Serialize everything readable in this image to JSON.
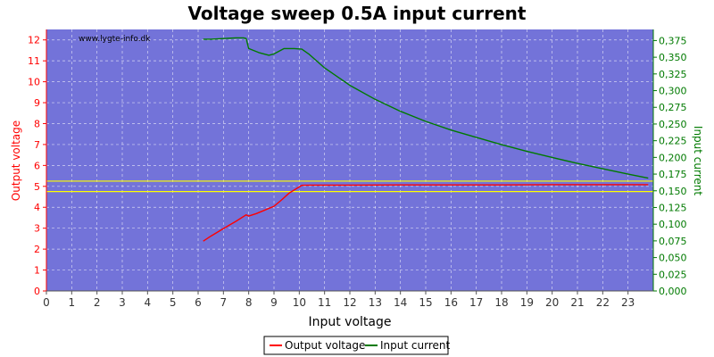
{
  "chart_data": {
    "type": "line",
    "title": "Voltage sweep 0.5A input current",
    "watermark": "www.lygte-info.dk",
    "xlabel": "Input voltage",
    "ylabel_left": "Output voltage",
    "ylabel_right": "Input current",
    "xlim": [
      0,
      24
    ],
    "ylim_left": [
      0,
      12.5
    ],
    "ylim_right": [
      0,
      0.3916
    ],
    "x_ticks": [
      "0",
      "1",
      "2",
      "3",
      "4",
      "5",
      "6",
      "7",
      "8",
      "9",
      "10",
      "11",
      "12",
      "13",
      "14",
      "15",
      "16",
      "17",
      "18",
      "19",
      "20",
      "21",
      "22",
      "23"
    ],
    "y_ticks_left": [
      "0",
      "1",
      "2",
      "3",
      "4",
      "5",
      "6",
      "7",
      "8",
      "9",
      "10",
      "11",
      "12"
    ],
    "y_ticks_right": [
      "0,000",
      "0,025",
      "0,050",
      "0,075",
      "0,100",
      "0,125",
      "0,150",
      "0,175",
      "0,200",
      "0,225",
      "0,250",
      "0,275",
      "0,300",
      "0,325",
      "0,350",
      "0,375"
    ],
    "grid": true,
    "background_color": "#7373d9",
    "reference_lines_left": [
      5.25,
      4.75
    ],
    "reference_line_color": "#ffff00",
    "series": [
      {
        "name": "Output voltage",
        "axis": "left",
        "color": "#ff0000",
        "x": [
          6.2,
          6.5,
          7.0,
          7.5,
          7.9,
          8.0,
          8.3,
          8.6,
          9.0,
          9.3,
          9.6,
          9.9,
          10.1,
          10.5,
          12,
          14,
          16,
          18,
          20,
          22,
          23.8
        ],
        "y": [
          2.38,
          2.62,
          2.98,
          3.33,
          3.64,
          3.58,
          3.7,
          3.85,
          4.05,
          4.35,
          4.68,
          4.9,
          5.05,
          5.06,
          5.06,
          5.07,
          5.07,
          5.07,
          5.08,
          5.08,
          5.08
        ]
      },
      {
        "name": "Input current",
        "axis": "right",
        "color": "#007a00",
        "x": [
          6.2,
          6.5,
          7.0,
          7.5,
          7.8,
          7.9,
          8.0,
          8.4,
          8.8,
          9.0,
          9.4,
          9.8,
          10.1,
          10.4,
          11,
          12,
          13,
          14,
          15,
          16,
          17,
          18,
          19,
          20,
          21,
          22,
          23,
          23.8
        ],
        "y": [
          0.377,
          0.377,
          0.378,
          0.379,
          0.379,
          0.378,
          0.363,
          0.357,
          0.353,
          0.355,
          0.363,
          0.363,
          0.362,
          0.354,
          0.334,
          0.308,
          0.287,
          0.269,
          0.254,
          0.241,
          0.23,
          0.219,
          0.209,
          0.2,
          0.191,
          0.183,
          0.175,
          0.169
        ]
      }
    ],
    "legend": {
      "placement": "bottom-center",
      "entries": [
        "Output voltage",
        "Input current"
      ]
    }
  }
}
